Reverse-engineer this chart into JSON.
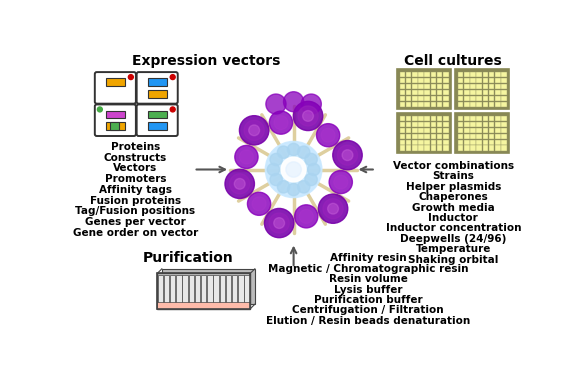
{
  "bg_color": "#ffffff",
  "left_title": "Expression vectors",
  "left_labels": [
    "Proteins",
    "Constructs",
    "Vectors",
    "Promoters",
    "Affinity tags",
    "Fusion proteins",
    "Tag/Fusion positions",
    "Genes per vector",
    "Gene order on vector"
  ],
  "right_title": "Cell cultures",
  "right_labels": [
    "Vector combinations",
    "Strains",
    "Helper plasmids",
    "Chaperones",
    "Growth media",
    "Inductor",
    "Inductor concentration",
    "Deepwells (24/96)",
    "Temperature",
    "Shaking orbital"
  ],
  "bottom_title": "Purification",
  "bottom_labels": [
    "Affinity resin",
    "Magnetic / Chromatographic resin",
    "Resin volume",
    "Lysis buffer",
    "Purification buffer",
    "Centrifugation / Filtration",
    "Elution / Resin beads denaturation"
  ],
  "plasmid_outline": "#333333",
  "plasmid_dot_red": "#cc0000",
  "plasmid_dot_green": "#44aa44",
  "cell_fill": "#f5f5a0",
  "cell_border": "#888855",
  "purif_fill": "#cccccc",
  "purif_border": "#444444",
  "purif_bottom": "#ffbbaa"
}
